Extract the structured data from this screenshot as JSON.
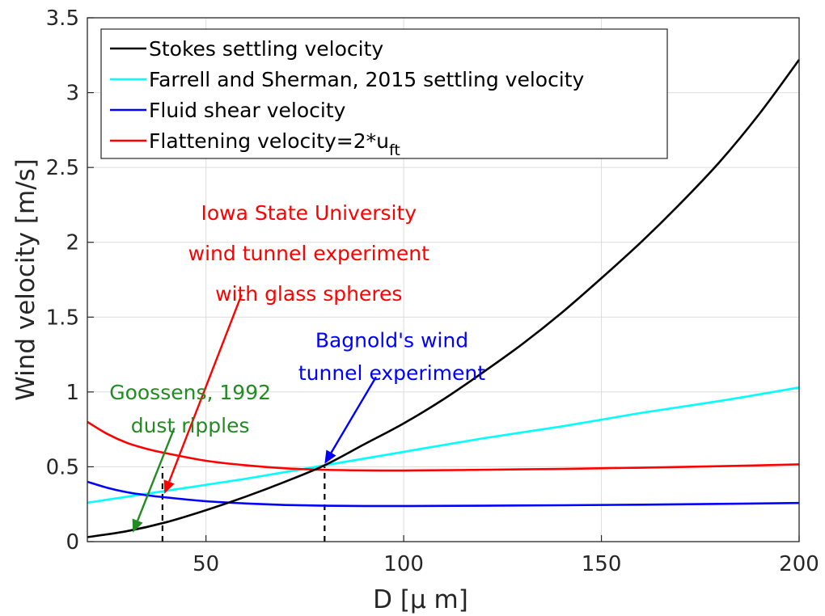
{
  "chart_data": {
    "type": "line",
    "xlabel": "D [μ m]",
    "ylabel": "Wind velocity [m/s]",
    "xlim": [
      20,
      200
    ],
    "ylim": [
      0,
      3.5
    ],
    "x_ticks": [
      50,
      100,
      150,
      200
    ],
    "y_ticks": [
      0,
      0.5,
      1,
      1.5,
      2,
      2.5,
      3,
      3.5
    ],
    "grid": true,
    "legend_position": "top-left",
    "series": [
      {
        "name": "Stokes settling velocity",
        "color": "#000000",
        "x": [
          20,
          30,
          40,
          50,
          60,
          70,
          80,
          90,
          100,
          110,
          120,
          130,
          140,
          150,
          160,
          170,
          180,
          190,
          200
        ],
        "y": [
          0.03,
          0.07,
          0.13,
          0.21,
          0.3,
          0.4,
          0.51,
          0.65,
          0.79,
          0.95,
          1.13,
          1.32,
          1.53,
          1.76,
          2.0,
          2.26,
          2.54,
          2.86,
          3.22
        ]
      },
      {
        "name": "Farrell and Sherman, 2015 settling velocity",
        "color": "#00ffff",
        "x": [
          20,
          40,
          60,
          80,
          100,
          120,
          140,
          160,
          180,
          200
        ],
        "y": [
          0.26,
          0.34,
          0.42,
          0.51,
          0.6,
          0.69,
          0.77,
          0.86,
          0.94,
          1.03
        ]
      },
      {
        "name": "Fluid shear velocity",
        "color": "#0000ff",
        "x": [
          20,
          25,
          30,
          35,
          40,
          50,
          60,
          70,
          80,
          90,
          100,
          120,
          140,
          160,
          180,
          200
        ],
        "y": [
          0.4,
          0.36,
          0.33,
          0.31,
          0.295,
          0.27,
          0.255,
          0.245,
          0.24,
          0.238,
          0.238,
          0.24,
          0.243,
          0.247,
          0.252,
          0.258
        ]
      },
      {
        "name": "Flattening velocity=2*u",
        "name_subscript": "ft",
        "color": "#ff0000",
        "x": [
          20,
          25,
          30,
          35,
          40,
          50,
          60,
          70,
          80,
          90,
          100,
          120,
          140,
          160,
          180,
          200
        ],
        "y": [
          0.8,
          0.72,
          0.66,
          0.62,
          0.59,
          0.54,
          0.51,
          0.49,
          0.48,
          0.476,
          0.475,
          0.48,
          0.486,
          0.494,
          0.504,
          0.516
        ]
      }
    ],
    "reference_lines": [
      {
        "x": 39,
        "y_from": 0,
        "y_to": 0.5,
        "style": "dashed"
      },
      {
        "x": 80,
        "y_from": 0,
        "y_to": 0.5,
        "style": "dashed"
      }
    ],
    "annotations": [
      {
        "lines": [
          "Iowa State University",
          "wind tunnel experiment",
          "with glass spheres"
        ],
        "color": "#ff0000",
        "text_x": 76,
        "text_y": [
          2.15,
          1.88,
          1.61
        ],
        "arrow_from": [
          59,
          1.65
        ],
        "arrow_to": [
          39.5,
          0.32
        ]
      },
      {
        "lines": [
          "Bagnold's wind",
          "tunnel experiment"
        ],
        "color": "#0000ff",
        "text_x": 97,
        "text_y": [
          1.3,
          1.08
        ],
        "arrow_from": [
          93,
          1.1
        ],
        "arrow_to": [
          80,
          0.52
        ]
      },
      {
        "lines": [
          "Goossens, 1992",
          "dust ripples"
        ],
        "color": "#228b22",
        "text_x": 46,
        "text_y": [
          0.95,
          0.73
        ],
        "arrow_from": [
          42,
          0.76
        ],
        "arrow_to": [
          31.5,
          0.06
        ]
      }
    ]
  }
}
